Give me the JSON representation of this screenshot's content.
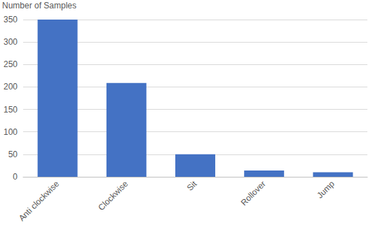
{
  "chart_data": {
    "type": "bar",
    "ylabel": "Number of Samples",
    "categories": [
      "Anti clockwise",
      "Clockwise",
      "Sit",
      "Rollover",
      "Jump"
    ],
    "values": [
      350,
      209,
      50,
      14,
      10
    ],
    "color": "#4472c4",
    "ylim": [
      0,
      350
    ],
    "yticks": [
      0,
      50,
      100,
      150,
      200,
      250,
      300,
      350
    ],
    "grid": true
  }
}
